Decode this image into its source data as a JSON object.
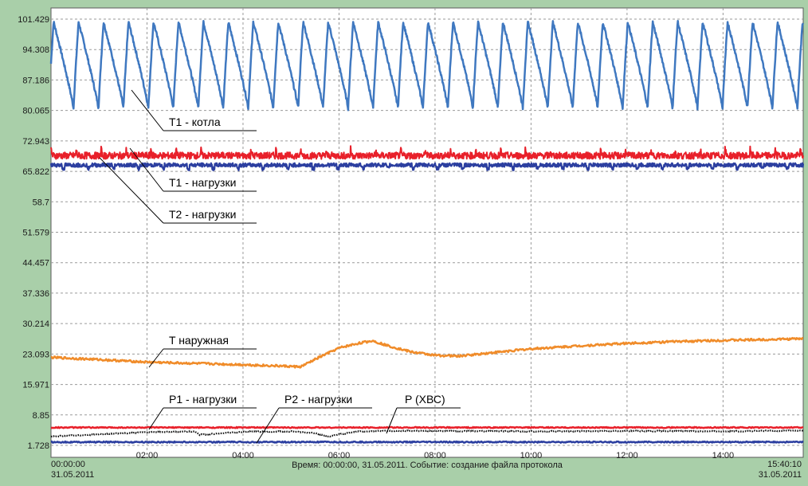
{
  "chart_data": {
    "type": "line",
    "title": "",
    "xlabel": "",
    "ylabel": "",
    "ylim": [
      1.728,
      101.429
    ],
    "y_ticks": [
      "101.429",
      "94.308",
      "87.186",
      "80.065",
      "72.943",
      "65.822",
      "58.7",
      "51.579",
      "44.457",
      "37.336",
      "30.214",
      "23.093",
      "15.971",
      "8.85",
      "1.728"
    ],
    "x_range_hours": [
      0,
      15.67
    ],
    "x_ticks": [
      "02:00",
      "04:00",
      "06:00",
      "08:00",
      "10:00",
      "12:00",
      "14:00"
    ],
    "x_start": {
      "time": "00:00:00",
      "date": "31.05.2011"
    },
    "x_end": {
      "time": "15:40:10",
      "date": "31.05.2011"
    },
    "grid": true,
    "footer_text": "Время: 00:00:00, 31.05.2011. Событие: создание файла протокола",
    "series": [
      {
        "name": "T1 - котла",
        "color": "#3f78c0",
        "values": {
          "min": 80.5,
          "max": 100.8,
          "cycle_hours": 0.52
        },
        "label": "T1 - котла"
      },
      {
        "name": "T1 - нагрузки",
        "color": "#e8202a",
        "values": {
          "mean": 69.5,
          "min": 68.2,
          "max": 72.0
        },
        "label": "T1 - нагрузки"
      },
      {
        "name": "T2 - нагрузки",
        "color": "#2c3fa0",
        "values": {
          "mean": 67.3,
          "min": 66.2,
          "max": 68.3
        },
        "label": "T2 - нагрузки"
      },
      {
        "name": "T наружная",
        "color": "#f08c2a",
        "x": [
          0,
          1,
          2,
          3,
          4,
          5,
          5.2,
          5.6,
          6.0,
          6.4,
          6.7,
          7,
          7.5,
          8,
          8.5,
          9,
          10,
          11,
          12,
          13,
          14,
          15,
          15.67
        ],
        "y": [
          22.3,
          21.8,
          21.2,
          20.9,
          20.6,
          20.2,
          20.1,
          22.4,
          24.5,
          25.6,
          26.2,
          25.1,
          23.6,
          22.8,
          22.6,
          23.2,
          24.3,
          25.0,
          25.6,
          26.0,
          26.3,
          26.5,
          26.7
        ],
        "label": "T наружная"
      },
      {
        "name": "P1 - нагрузки",
        "color": "#e8202a",
        "values": {
          "mean": 5.9
        },
        "label": "P1 - нагрузки"
      },
      {
        "name": "P2 - нагрузки",
        "color": "#2c3fa0",
        "values": {
          "mean": 2.5
        },
        "label": "P2 - нагрузки"
      },
      {
        "name": "P (ХВС)",
        "color": "#111111",
        "x": [
          0,
          1,
          2,
          3,
          3.1,
          4,
          5,
          5.5,
          5.8,
          6.0,
          6.4,
          7,
          8,
          10,
          12,
          14,
          15.67
        ],
        "y": [
          3.8,
          4.3,
          4.8,
          5.0,
          4.2,
          4.9,
          5.0,
          4.6,
          3.8,
          4.3,
          5.0,
          5.1,
          5.1,
          5.0,
          5.1,
          5.0,
          5.2
        ],
        "label": "P (ХВС)"
      }
    ]
  }
}
